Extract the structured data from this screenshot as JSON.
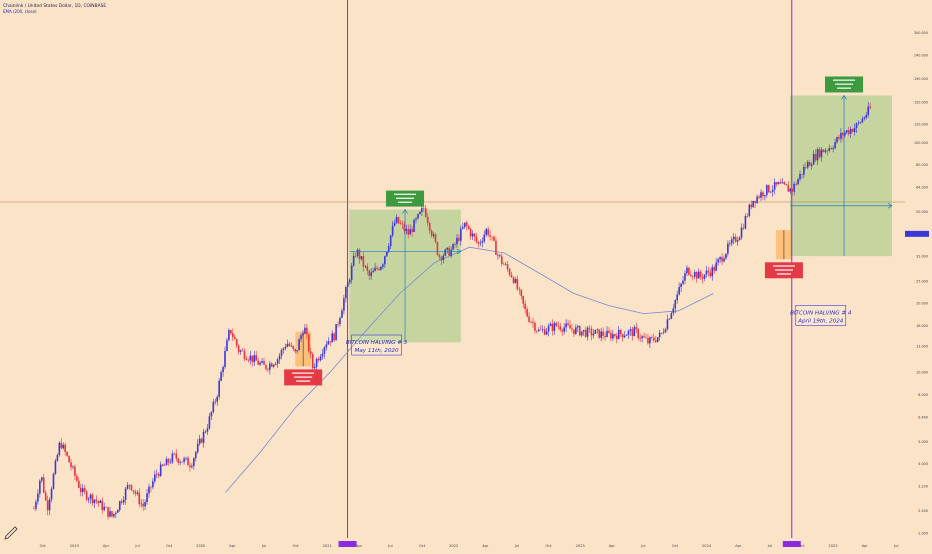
{
  "header": {
    "symbol_line": "Chainlink / United States Dollar, 1D, COINBASE",
    "indicator_line": "EMA (200, close)"
  },
  "colors": {
    "background": "#fbe3c8",
    "candle_up": "#3a36d8",
    "candle_down": "#e8323c",
    "ema": "#7a8ad6",
    "halving_line": "#8a2be2",
    "green_zone": "rgba(120,190,100,0.40)",
    "red_zone": "rgba(255,165,60,0.55)",
    "green_label": "#3e9a3e",
    "red_label": "#e53945",
    "crosshair": "#1f7fbf",
    "current_line": "#b07a4c"
  },
  "chart_data": {
    "type": "candlestick",
    "symbol": "Chainlink / United States Dollar",
    "timeframe": "1D",
    "exchange": "COINBASE",
    "price_scale": "log",
    "ylim": [
      1.9,
      400
    ],
    "price_path": [
      {
        "t": 0.0,
        "p": 2.55
      },
      {
        "t": 0.008,
        "p": 3.6
      },
      {
        "t": 0.015,
        "p": 2.55
      },
      {
        "t": 0.03,
        "p": 5.0
      },
      {
        "t": 0.04,
        "p": 4.1
      },
      {
        "t": 0.055,
        "p": 3.0
      },
      {
        "t": 0.07,
        "p": 2.8
      },
      {
        "t": 0.09,
        "p": 2.35
      },
      {
        "t": 0.11,
        "p": 3.3
      },
      {
        "t": 0.125,
        "p": 2.6
      },
      {
        "t": 0.14,
        "p": 3.6
      },
      {
        "t": 0.16,
        "p": 4.3
      },
      {
        "t": 0.18,
        "p": 4.0
      },
      {
        "t": 0.2,
        "p": 6.0
      },
      {
        "t": 0.21,
        "p": 8.0
      },
      {
        "t": 0.225,
        "p": 15.5
      },
      {
        "t": 0.235,
        "p": 12.5
      },
      {
        "t": 0.25,
        "p": 11.5
      },
      {
        "t": 0.265,
        "p": 10.5
      },
      {
        "t": 0.28,
        "p": 11.5
      },
      {
        "t": 0.29,
        "p": 13.5
      },
      {
        "t": 0.3,
        "p": 12.0
      },
      {
        "t": 0.31,
        "p": 16.0
      },
      {
        "t": 0.32,
        "p": 10.5
      },
      {
        "t": 0.335,
        "p": 13.5
      },
      {
        "t": 0.345,
        "p": 14.5
      },
      {
        "t": 0.36,
        "p": 24
      },
      {
        "t": 0.37,
        "p": 34
      },
      {
        "t": 0.385,
        "p": 26
      },
      {
        "t": 0.4,
        "p": 30
      },
      {
        "t": 0.415,
        "p": 46
      },
      {
        "t": 0.43,
        "p": 40
      },
      {
        "t": 0.448,
        "p": 52
      },
      {
        "t": 0.465,
        "p": 32
      },
      {
        "t": 0.48,
        "p": 34
      },
      {
        "t": 0.495,
        "p": 44
      },
      {
        "t": 0.51,
        "p": 36
      },
      {
        "t": 0.52,
        "p": 42
      },
      {
        "t": 0.535,
        "p": 31
      },
      {
        "t": 0.55,
        "p": 26
      },
      {
        "t": 0.565,
        "p": 18
      },
      {
        "t": 0.58,
        "p": 15
      },
      {
        "t": 0.6,
        "p": 16
      },
      {
        "t": 0.63,
        "p": 15
      },
      {
        "t": 0.66,
        "p": 14.5
      },
      {
        "t": 0.69,
        "p": 15
      },
      {
        "t": 0.705,
        "p": 13.5
      },
      {
        "t": 0.72,
        "p": 14.5
      },
      {
        "t": 0.735,
        "p": 20
      },
      {
        "t": 0.75,
        "p": 28
      },
      {
        "t": 0.765,
        "p": 26
      },
      {
        "t": 0.78,
        "p": 28
      },
      {
        "t": 0.795,
        "p": 34
      },
      {
        "t": 0.81,
        "p": 40
      },
      {
        "t": 0.825,
        "p": 56
      },
      {
        "t": 0.84,
        "p": 62
      },
      {
        "t": 0.855,
        "p": 65
      },
      {
        "t": 0.87,
        "p": 62
      },
      {
        "t": 0.885,
        "p": 78
      },
      {
        "t": 0.9,
        "p": 90
      },
      {
        "t": 0.915,
        "p": 96
      },
      {
        "t": 0.93,
        "p": 110
      },
      {
        "t": 0.945,
        "p": 118
      },
      {
        "t": 0.96,
        "p": 140
      }
    ],
    "ema_path": [
      {
        "t": 0.22,
        "p": 3.0
      },
      {
        "t": 0.26,
        "p": 4.5
      },
      {
        "t": 0.3,
        "p": 7.0
      },
      {
        "t": 0.34,
        "p": 10.0
      },
      {
        "t": 0.38,
        "p": 15.0
      },
      {
        "t": 0.42,
        "p": 22.0
      },
      {
        "t": 0.46,
        "p": 30.0
      },
      {
        "t": 0.5,
        "p": 35.0
      },
      {
        "t": 0.54,
        "p": 33.0
      },
      {
        "t": 0.58,
        "p": 27.0
      },
      {
        "t": 0.62,
        "p": 22.0
      },
      {
        "t": 0.66,
        "p": 19.5
      },
      {
        "t": 0.7,
        "p": 18.0
      },
      {
        "t": 0.74,
        "p": 18.5
      },
      {
        "t": 0.78,
        "p": 22.0
      }
    ],
    "halvings": [
      {
        "t": 0.36,
        "label": "BITCOIN HALVING # 3",
        "date": "May 11th, 2020",
        "label_price": 13.0
      },
      {
        "t": 0.87,
        "label": "BITCOIN HALVING # 4",
        "date": "April 19th, 2024",
        "label_price": 17.5
      }
    ],
    "measure_zones": [
      {
        "kind": "gain",
        "t0": 0.362,
        "t1": 0.49,
        "p_entry": 33.5,
        "p_top": 51,
        "p_bottom": 13.5,
        "mid_t": 0.426
      },
      {
        "kind": "gain",
        "t0": 0.868,
        "t1": 0.985,
        "p_entry": 53,
        "p_top": 160,
        "p_bottom": 32,
        "mid_t": 0.93
      },
      {
        "kind": "loss",
        "t0": 0.3,
        "t1": 0.318,
        "p_entry": 14.0,
        "p_top": 15.0,
        "p_bottom": 10.6,
        "mid_t": 0.309
      },
      {
        "kind": "loss",
        "t0": 0.852,
        "t1": 0.87,
        "p_entry": 40.0,
        "p_top": 41.5,
        "p_bottom": 31.0,
        "mid_t": 0.861
      }
    ],
    "current_price": 40,
    "x_tick_labels": [
      "Oct",
      "2019",
      "Apr",
      "Jul",
      "Oct",
      "2020",
      "Apr",
      "Jul",
      "Oct",
      "2021",
      "Apr",
      "Jul",
      "Oct",
      "2022",
      "Apr",
      "Jul",
      "Oct",
      "2023",
      "Apr",
      "Jul",
      "Oct",
      "2024",
      "Apr",
      "Jul",
      "Oct",
      "2025",
      "Apr",
      "Jul"
    ],
    "y_tick_labels": [
      {
        "p": 300,
        "label": "300.000"
      },
      {
        "p": 240,
        "label": "240.000"
      },
      {
        "p": 190,
        "label": "190.000"
      },
      {
        "p": 150,
        "label": "150.000"
      },
      {
        "p": 120,
        "label": "120.000"
      },
      {
        "p": 100,
        "label": "100.000"
      },
      {
        "p": 80,
        "label": "80.000"
      },
      {
        "p": 64,
        "label": "64.000"
      },
      {
        "p": 50,
        "label": "50.000"
      },
      {
        "p": 40,
        "label": "40.000"
      },
      {
        "p": 32,
        "label": "32.000"
      },
      {
        "p": 25,
        "label": "25.000"
      },
      {
        "p": 20,
        "label": "20.000"
      },
      {
        "p": 16,
        "label": "16.000"
      },
      {
        "p": 13,
        "label": "13.000"
      },
      {
        "p": 10,
        "label": "10.000"
      },
      {
        "p": 8,
        "label": "8.000"
      },
      {
        "p": 6.4,
        "label": "6.400"
      },
      {
        "p": 5,
        "label": "5.000"
      },
      {
        "p": 4,
        "label": "4.000"
      },
      {
        "p": 3.2,
        "label": "3.200"
      },
      {
        "p": 2.5,
        "label": "2.500"
      },
      {
        "p": 2,
        "label": "2.000"
      }
    ]
  }
}
